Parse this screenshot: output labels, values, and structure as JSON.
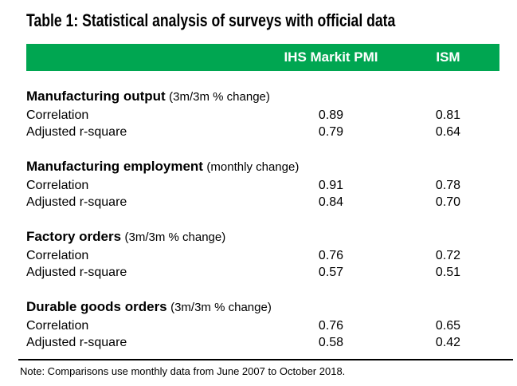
{
  "colors": {
    "header_bar_green": "#00a651",
    "header_text": "#ffffff",
    "body_text": "#000000"
  },
  "chart_data": {
    "type": "table",
    "title": "Table 1: Statistical analysis of surveys with official data",
    "columns": [
      "IHS Markit PMI",
      "ISM"
    ],
    "sections": [
      {
        "name": "Manufacturing output",
        "qualifier": "(3m/3m % change)",
        "rows": [
          {
            "label": "Correlation",
            "values": [
              "0.89",
              "0.81"
            ]
          },
          {
            "label": "Adjusted r-square",
            "values": [
              "0.79",
              "0.64"
            ]
          }
        ]
      },
      {
        "name": "Manufacturing employment",
        "qualifier": "(monthly change)",
        "rows": [
          {
            "label": "Correlation",
            "values": [
              "0.91",
              "0.78"
            ]
          },
          {
            "label": "Adjusted r-square",
            "values": [
              "0.84",
              "0.70"
            ]
          }
        ]
      },
      {
        "name": "Factory orders",
        "qualifier": "(3m/3m % change)",
        "rows": [
          {
            "label": "Correlation",
            "values": [
              "0.76",
              "0.72"
            ]
          },
          {
            "label": "Adjusted r-square",
            "values": [
              "0.57",
              "0.51"
            ]
          }
        ]
      },
      {
        "name": "Durable goods orders",
        "qualifier": "(3m/3m % change)",
        "rows": [
          {
            "label": "Correlation",
            "values": [
              "0.76",
              "0.65"
            ]
          },
          {
            "label": "Adjusted r-square",
            "values": [
              "0.58",
              "0.42"
            ]
          }
        ]
      }
    ],
    "note": "Note: Comparisons use monthly data from June 2007 to October 2018."
  }
}
